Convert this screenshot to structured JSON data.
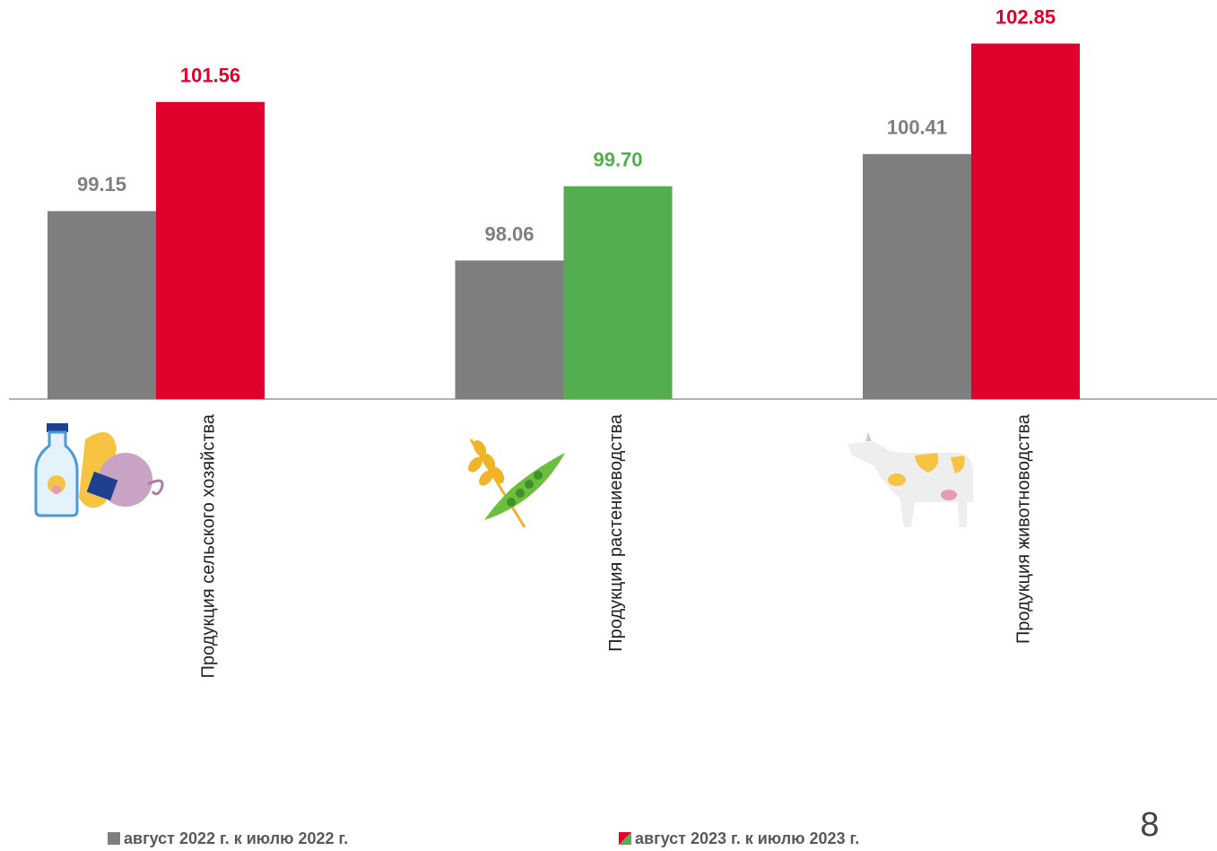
{
  "chart_data": {
    "type": "bar",
    "categories": [
      "Продукция сельского хозяйства",
      "Продукция растениеводства",
      "Продукция животноводства"
    ],
    "series": [
      {
        "name": "август 2022 г. к июлю 2022 г.",
        "color": "#7f7f7f",
        "colors": [
          "#7f7f7f",
          "#7f7f7f",
          "#7f7f7f"
        ],
        "values": [
          99.15,
          98.06,
          100.41
        ]
      },
      {
        "name": "август 2023 г. к июлю 2023 г.",
        "color": "#e1002b",
        "colors": [
          "#e1002b",
          "#52ae4f",
          "#e1002b"
        ],
        "values": [
          101.56,
          99.7,
          102.85
        ],
        "value_labels": [
          "101.56",
          "99.70",
          "102.85"
        ]
      }
    ],
    "ylim": [
      95,
      104
    ],
    "page_number": "8"
  }
}
